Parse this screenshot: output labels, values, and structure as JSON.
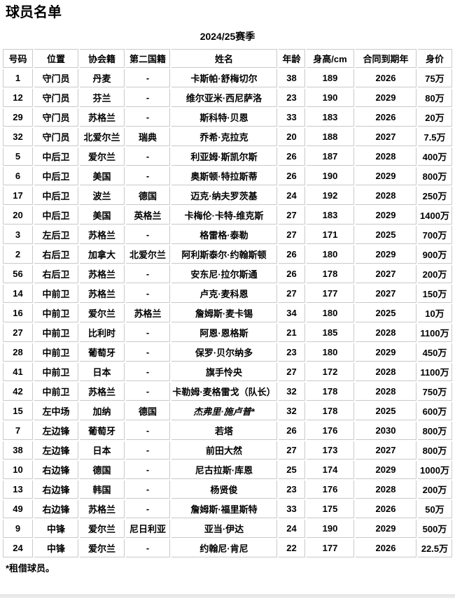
{
  "page": {
    "title": "球员名单",
    "caption": "2024/25赛季",
    "footnote": "*租借球员。"
  },
  "colors": {
    "border": "#c9c9c9",
    "text": "#000000",
    "bottom_strip": "#ebebeb"
  },
  "table": {
    "columns": [
      "号码",
      "位置",
      "协会籍",
      "第二国籍",
      "姓名",
      "年龄",
      "身高/cm",
      "合同到期年",
      "身价"
    ],
    "column_keys": [
      "number",
      "position",
      "nationality",
      "second-nationality",
      "name",
      "age",
      "height",
      "contract-until",
      "market-value"
    ],
    "rows": [
      {
        "cells": [
          "1",
          "守门员",
          "丹麦",
          "-",
          "卡斯帕·舒梅切尔",
          "38",
          "189",
          "2026",
          "75万"
        ],
        "loan": false
      },
      {
        "cells": [
          "12",
          "守门员",
          "芬兰",
          "-",
          "维尔亚米·西尼萨洛",
          "23",
          "190",
          "2029",
          "80万"
        ],
        "loan": false
      },
      {
        "cells": [
          "29",
          "守门员",
          "苏格兰",
          "-",
          "斯科特·贝恩",
          "33",
          "183",
          "2026",
          "20万"
        ],
        "loan": false
      },
      {
        "cells": [
          "32",
          "守门员",
          "北爱尔兰",
          "瑞典",
          "乔希·克拉克",
          "20",
          "188",
          "2027",
          "7.5万"
        ],
        "loan": false
      },
      {
        "cells": [
          "5",
          "中后卫",
          "爱尔兰",
          "-",
          "利亚姆·斯凯尔斯",
          "26",
          "187",
          "2028",
          "400万"
        ],
        "loan": false
      },
      {
        "cells": [
          "6",
          "中后卫",
          "美国",
          "-",
          "奥斯顿·特拉斯蒂",
          "26",
          "190",
          "2029",
          "800万"
        ],
        "loan": false
      },
      {
        "cells": [
          "17",
          "中后卫",
          "波兰",
          "德国",
          "迈克·纳夫罗茨基",
          "24",
          "192",
          "2028",
          "250万"
        ],
        "loan": false
      },
      {
        "cells": [
          "20",
          "中后卫",
          "美国",
          "英格兰",
          "卡梅伦·卡特-维克斯",
          "27",
          "183",
          "2029",
          "1400万"
        ],
        "loan": false
      },
      {
        "cells": [
          "3",
          "左后卫",
          "苏格兰",
          "-",
          "格雷格·泰勒",
          "27",
          "171",
          "2025",
          "700万"
        ],
        "loan": false
      },
      {
        "cells": [
          "2",
          "右后卫",
          "加拿大",
          "北爱尔兰",
          "阿利斯泰尔·约翰斯顿",
          "26",
          "180",
          "2029",
          "900万"
        ],
        "loan": false
      },
      {
        "cells": [
          "56",
          "右后卫",
          "苏格兰",
          "-",
          "安东尼·拉尔斯通",
          "26",
          "178",
          "2027",
          "200万"
        ],
        "loan": false
      },
      {
        "cells": [
          "14",
          "中前卫",
          "苏格兰",
          "-",
          "卢克·麦科恩",
          "27",
          "177",
          "2027",
          "150万"
        ],
        "loan": false
      },
      {
        "cells": [
          "16",
          "中前卫",
          "爱尔兰",
          "苏格兰",
          "詹姆斯·麦卡锡",
          "34",
          "180",
          "2025",
          "10万"
        ],
        "loan": false
      },
      {
        "cells": [
          "27",
          "中前卫",
          "比利时",
          "-",
          "阿恩·恩格斯",
          "21",
          "185",
          "2028",
          "1100万"
        ],
        "loan": false
      },
      {
        "cells": [
          "28",
          "中前卫",
          "葡萄牙",
          "-",
          "保罗·贝尔纳多",
          "23",
          "180",
          "2029",
          "450万"
        ],
        "loan": false
      },
      {
        "cells": [
          "41",
          "中前卫",
          "日本",
          "-",
          "旗手怜央",
          "27",
          "172",
          "2028",
          "1100万"
        ],
        "loan": false
      },
      {
        "cells": [
          "42",
          "中前卫",
          "苏格兰",
          "-",
          "卡勒姆·麦格雷戈（队长）",
          "32",
          "178",
          "2028",
          "750万"
        ],
        "loan": false
      },
      {
        "cells": [
          "15",
          "左中场",
          "加纳",
          "德国",
          "杰弗里·施卢普*",
          "32",
          "178",
          "2025",
          "600万"
        ],
        "loan": true
      },
      {
        "cells": [
          "7",
          "左边锋",
          "葡萄牙",
          "-",
          "若塔",
          "26",
          "176",
          "2030",
          "800万"
        ],
        "loan": false
      },
      {
        "cells": [
          "38",
          "左边锋",
          "日本",
          "-",
          "前田大然",
          "27",
          "173",
          "2027",
          "800万"
        ],
        "loan": false
      },
      {
        "cells": [
          "10",
          "右边锋",
          "德国",
          "-",
          "尼古拉斯·库恩",
          "25",
          "174",
          "2029",
          "1000万"
        ],
        "loan": false
      },
      {
        "cells": [
          "13",
          "右边锋",
          "韩国",
          "-",
          "杨贤俊",
          "23",
          "176",
          "2028",
          "200万"
        ],
        "loan": false
      },
      {
        "cells": [
          "49",
          "右边锋",
          "苏格兰",
          "-",
          "詹姆斯·福里斯特",
          "33",
          "175",
          "2026",
          "50万"
        ],
        "loan": false
      },
      {
        "cells": [
          "9",
          "中锋",
          "爱尔兰",
          "尼日利亚",
          "亚当·伊达",
          "24",
          "190",
          "2029",
          "500万"
        ],
        "loan": false
      },
      {
        "cells": [
          "24",
          "中锋",
          "爱尔兰",
          "-",
          "约翰尼·肯尼",
          "22",
          "177",
          "2026",
          "22.5万"
        ],
        "loan": false
      }
    ]
  }
}
